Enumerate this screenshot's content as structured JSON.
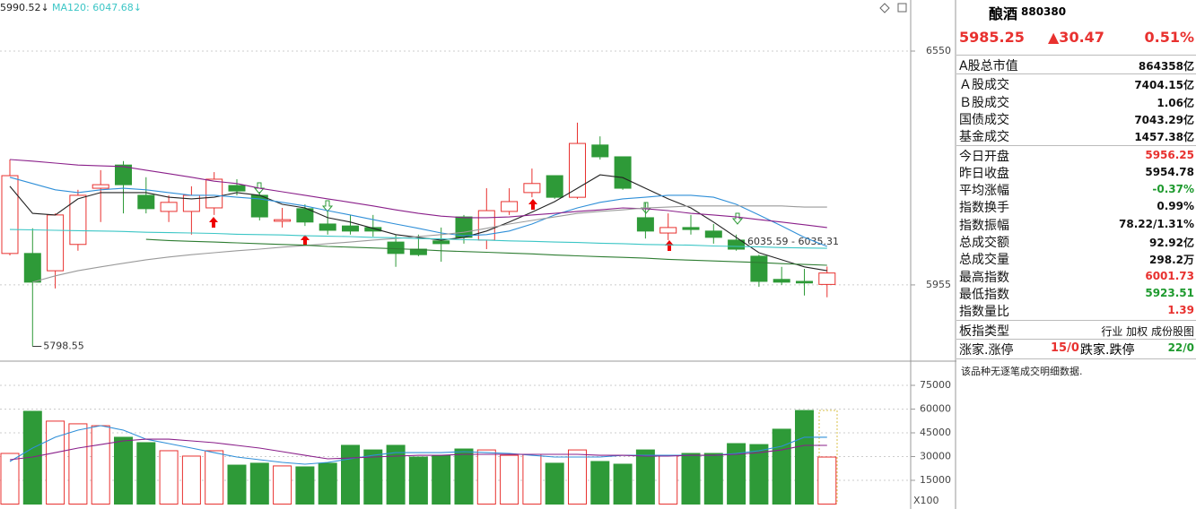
{
  "chart_data": [
    {
      "type": "candlestick",
      "open": [
        6035,
        6035,
        5991,
        6058,
        6201,
        6260,
        6183,
        6142,
        6142,
        6151,
        6208,
        6183,
        6117,
        6149,
        6110,
        6105,
        6101,
        6064,
        6046,
        6067,
        6128,
        6069,
        6142,
        6190,
        6233,
        6178,
        6311,
        6281,
        6126,
        6087,
        6101,
        6092,
        6069,
        6028,
        5969,
        5964,
        5956.25
      ],
      "high": [
        6274,
        6099,
        6137,
        6197,
        6247,
        6270,
        6229,
        6183,
        6206,
        6242,
        6224,
        6192,
        6151,
        6160,
        6142,
        6133,
        6133,
        6083,
        6083,
        6101,
        6133,
        6201,
        6201,
        6251,
        6233,
        6368,
        6333,
        6281,
        6165,
        6137,
        6133,
        6110,
        6083,
        6032,
        6001,
        5996,
        6001.73
      ],
      "low": [
        6030,
        5798.55,
        5946,
        6042,
        6115,
        6137,
        6137,
        6115,
        6083,
        6133,
        6183,
        6119,
        6101,
        6105,
        6083,
        6083,
        6078,
        6001,
        6028,
        6014,
        6060,
        6046,
        6133,
        6178,
        6174,
        6174,
        6274,
        6197,
        6073,
        6069,
        6083,
        6060,
        6042,
        5950,
        5955,
        5928,
        5923.51
      ],
      "close": [
        6233,
        5962,
        6133,
        6183,
        6210,
        6210,
        6149,
        6165,
        6183,
        6224,
        6194,
        6128,
        6121,
        6115,
        6094,
        6092,
        6092,
        6035,
        6032,
        6060,
        6076,
        6144,
        6167,
        6213,
        6178,
        6315,
        6281,
        6201,
        6092,
        6101,
        6096,
        6076,
        6046,
        5964,
        5962,
        5960,
        5985.25
      ],
      "up_color": "#e8312f",
      "down_color": "#2e9a38",
      "series": [
        {
          "name": "5990.52↓",
          "color": "#222222",
          "values": [
            6206,
            6137,
            6133,
            6174,
            6190,
            6190,
            6190,
            6178,
            6174,
            6178,
            6190,
            6183,
            6160,
            6151,
            6126,
            6115,
            6099,
            6083,
            6076,
            6069,
            6076,
            6092,
            6115,
            6140,
            6167,
            6201,
            6235,
            6228,
            6201,
            6174,
            6151,
            6115,
            6076,
            6037,
            6019,
            6001,
            5991
          ]
        },
        {
          "color": "#2f8fd8",
          "values": [
            6229,
            6213,
            6197,
            6190,
            6197,
            6201,
            6197,
            6190,
            6183,
            6183,
            6178,
            6174,
            6165,
            6156,
            6144,
            6133,
            6121,
            6110,
            6099,
            6087,
            6080,
            6083,
            6092,
            6110,
            6133,
            6151,
            6165,
            6174,
            6178,
            6183,
            6183,
            6178,
            6160,
            6133,
            6105,
            6076,
            6053
          ]
        },
        {
          "color": "#8a1f8a",
          "values": [
            6274,
            6270,
            6265,
            6260,
            6258,
            6256,
            6247,
            6238,
            6229,
            6219,
            6213,
            6201,
            6192,
            6183,
            6174,
            6165,
            6156,
            6146,
            6137,
            6130,
            6126,
            6126,
            6128,
            6133,
            6137,
            6142,
            6146,
            6151,
            6149,
            6144,
            6137,
            6133,
            6128,
            6121,
            6115,
            6108,
            6101
          ]
        },
        {
          "color": "#9a9a9a",
          "values": [
            null,
            5962,
            5978,
            5991,
            6001,
            6010,
            6019,
            6026,
            6032,
            6037,
            6042,
            6046,
            6051,
            6055,
            6060,
            6064,
            6069,
            6073,
            6078,
            6083,
            6089,
            6099,
            6110,
            6119,
            6128,
            6137,
            6142,
            6146,
            6151,
            6153,
            6156,
            6156,
            6156,
            6156,
            6156,
            6153,
            6153
          ]
        },
        {
          "name": "MA120: 6047.68↓",
          "color": "#3cc6c6",
          "values": [
            6096,
            6095,
            6094,
            6093,
            6092,
            6091,
            6089,
            6088,
            6087,
            6086,
            6084,
            6083,
            6082,
            6080,
            6079,
            6078,
            6076,
            6075,
            6073,
            6072,
            6070,
            6069,
            6067,
            6066,
            6064,
            6063,
            6061,
            6060,
            6058,
            6057,
            6056,
            6054,
            6053,
            6052,
            6050,
            6049,
            6048
          ]
        },
        {
          "color": "#2e7d32",
          "values": [
            null,
            null,
            null,
            null,
            null,
            null,
            6071,
            6068,
            6066,
            6064,
            6062,
            6060,
            6058,
            6056,
            6053,
            6051,
            6049,
            6047,
            6045,
            6042,
            6040,
            6038,
            6036,
            6034,
            6031,
            6029,
            6027,
            6025,
            6023,
            6020,
            6018,
            6016,
            6014,
            6012,
            6009,
            6007,
            6005
          ]
        }
      ],
      "annotations": [
        "6035.59 - 6035.31"
      ],
      "ylim": [
        5761,
        6680
      ],
      "yticks": [
        5955,
        6550
      ],
      "grid": true
    },
    {
      "type": "bar",
      "values": [
        32000,
        58600,
        52400,
        50700,
        49500,
        42200,
        38800,
        33700,
        30300,
        33700,
        24600,
        25800,
        24100,
        23500,
        25800,
        37100,
        34200,
        37100,
        29700,
        30800,
        34800,
        34200,
        30800,
        31400,
        25800,
        34200,
        26900,
        25200,
        34200,
        30800,
        32000,
        32000,
        38200,
        37600,
        47300,
        59100,
        29700
      ],
      "series": [
        {
          "color": "#2f8fd8",
          "values": [
            26900,
            35400,
            42200,
            46700,
            49500,
            46700,
            41000,
            38200,
            35400,
            32500,
            29700,
            28000,
            26300,
            25200,
            26300,
            28600,
            30800,
            32500,
            32500,
            32500,
            33100,
            32500,
            32000,
            30800,
            29700,
            29700,
            29700,
            30800,
            30800,
            30800,
            30800,
            30800,
            32000,
            33700,
            36500,
            42200,
            42200
          ]
        },
        {
          "color": "#8a1f8a",
          "values": [
            28000,
            29700,
            32500,
            35400,
            37600,
            39900,
            41000,
            41000,
            39900,
            38800,
            37100,
            35400,
            33100,
            30800,
            28600,
            29100,
            29700,
            30300,
            30800,
            30800,
            31400,
            31400,
            31400,
            31400,
            31400,
            31400,
            30800,
            30800,
            30300,
            30300,
            30800,
            30800,
            31400,
            32500,
            34200,
            37100,
            37100
          ]
        }
      ],
      "unit_label": "X100",
      "ylim": [
        -1980,
        89150
      ],
      "yticks": [
        15000,
        30000,
        45000,
        60000,
        75000
      ],
      "grid": true
    }
  ],
  "quote_panel": {
    "name": "酿酒",
    "code": "880380",
    "price": "5985.25",
    "change": "▲30.47",
    "change_pct": "0.51%",
    "groups": [
      [
        {
          "label": "A股总市值",
          "value": "864358亿"
        }
      ],
      [
        {
          "label": "Ａ股成交",
          "value": "7404.15亿"
        },
        {
          "label": "Ｂ股成交",
          "value": "1.06亿"
        },
        {
          "label": "国债成交",
          "value": "7043.29亿"
        },
        {
          "label": "基金成交",
          "value": "1457.38亿"
        }
      ],
      [
        {
          "label": "今日开盘",
          "value": "5956.25",
          "color": "#e8312f"
        },
        {
          "label": "昨日收盘",
          "value": "5954.78"
        },
        {
          "label": "平均涨幅",
          "value": "-0.37%",
          "color": "#1e9a2e"
        },
        {
          "label": "指数换手",
          "value": "0.99%"
        },
        {
          "label": "指数振幅",
          "value": "78.22/1.31%"
        },
        {
          "label": "总成交额",
          "value": "92.92亿"
        },
        {
          "label": "总成交量",
          "value": "298.2万"
        },
        {
          "label": "最高指数",
          "value": "6001.73",
          "color": "#e8312f"
        },
        {
          "label": "最低指数",
          "value": "5923.51",
          "color": "#1e9a2e"
        },
        {
          "label": "指数量比",
          "value": "1.39",
          "color": "#e8312f"
        }
      ],
      [
        {
          "label": "板指类型",
          "value": "行业 加权 成份股图"
        }
      ]
    ],
    "breadth": {
      "up_label": "涨家.涨停",
      "up_value": "15/0",
      "down_label": "跌家.跌停",
      "down_value": "22/0"
    },
    "note": "该品种无逐笔成交明细数据."
  }
}
